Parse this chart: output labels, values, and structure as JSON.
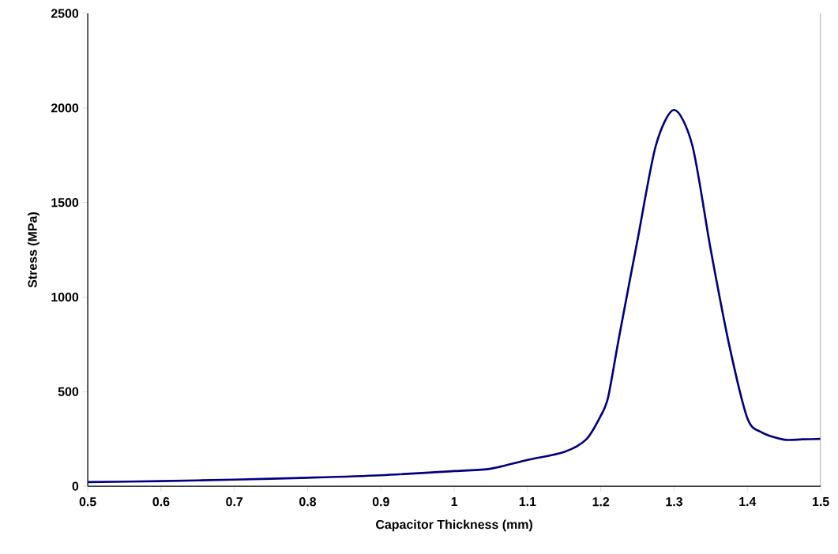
{
  "chart_data": {
    "type": "line",
    "xlabel": "Capacitor Thickness (mm)",
    "ylabel": "Stress (MPa)",
    "series": [
      {
        "color": "#000080",
        "x": [
          0.5,
          0.6,
          0.7,
          0.8,
          0.9,
          1.0,
          1.05,
          1.1,
          1.15,
          1.18,
          1.2,
          1.21,
          1.225,
          1.25,
          1.275,
          1.3,
          1.325,
          1.35,
          1.375,
          1.4,
          1.42,
          1.45,
          1.475,
          1.5
        ],
        "values": [
          22,
          27,
          35,
          45,
          58,
          80,
          93,
          139,
          181,
          247,
          373,
          471,
          790,
          1300,
          1800,
          1990,
          1800,
          1250,
          750,
          359,
          284,
          246,
          248,
          250
        ]
      }
    ],
    "xlim": [
      0.5,
      1.5
    ],
    "ylim": [
      0,
      2500
    ],
    "xticks": [
      0.5,
      0.6,
      0.7,
      0.8,
      0.9,
      1,
      1.1,
      1.2,
      1.3,
      1.4,
      1.5
    ],
    "yticks": [
      0,
      500,
      1000,
      1500,
      2000,
      2500
    ],
    "marker": "none",
    "line_style": "solid"
  }
}
